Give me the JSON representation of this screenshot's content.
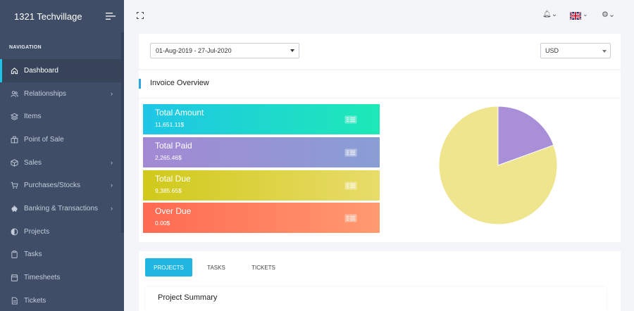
{
  "app": {
    "title": "1321 Techvillage"
  },
  "sidebar": {
    "heading": "NAVIGATION",
    "items": [
      {
        "label": "Dashboard",
        "icon": "home-icon",
        "active": true,
        "has_children": false
      },
      {
        "label": "Relationships",
        "icon": "users-icon",
        "active": false,
        "has_children": true
      },
      {
        "label": "Items",
        "icon": "layers-icon",
        "active": false,
        "has_children": false
      },
      {
        "label": "Point of Sale",
        "icon": "register-icon",
        "active": false,
        "has_children": false
      },
      {
        "label": "Sales",
        "icon": "box-icon",
        "active": false,
        "has_children": true
      },
      {
        "label": "Purchases/Stocks",
        "icon": "cart-icon",
        "active": false,
        "has_children": true
      },
      {
        "label": "Banking & Transactions",
        "icon": "piggy-bank-icon",
        "active": false,
        "has_children": true
      },
      {
        "label": "Projects",
        "icon": "half-circle-icon",
        "active": false,
        "has_children": false
      },
      {
        "label": "Tasks",
        "icon": "clipboard-icon",
        "active": false,
        "has_children": false
      },
      {
        "label": "Timesheets",
        "icon": "clock-icon",
        "active": false,
        "has_children": false
      },
      {
        "label": "Tickets",
        "icon": "file-icon",
        "active": false,
        "has_children": false
      }
    ]
  },
  "filters": {
    "date_range": "01-Aug-2019 - 27-Jul-2020",
    "currency": "USD"
  },
  "invoice": {
    "title": "Invoice Overview",
    "stats": [
      {
        "label": "Total Amount",
        "value": "11,651.11$"
      },
      {
        "label": "Total Paid",
        "value": "2,265.46$"
      },
      {
        "label": "Total Due",
        "value": "9,385.65$"
      },
      {
        "label": "Over Due",
        "value": "0.00$"
      }
    ]
  },
  "chart_data": {
    "type": "pie",
    "slices": [
      {
        "name": "Total Paid",
        "value": 2265.46,
        "color": "#a98fd8"
      },
      {
        "name": "Total Due",
        "value": 9385.65,
        "color": "#efe58e"
      }
    ]
  },
  "tabs": [
    {
      "label": "PROJECTS",
      "active": true
    },
    {
      "label": "TASKS",
      "active": false
    },
    {
      "label": "TICKETS",
      "active": false
    }
  ],
  "summary": {
    "title": "Project Summary"
  },
  "colors": {
    "sidebar_bg": "#3f4d67",
    "accent": "#1ec4e8",
    "tab_active": "#20b6e1"
  }
}
